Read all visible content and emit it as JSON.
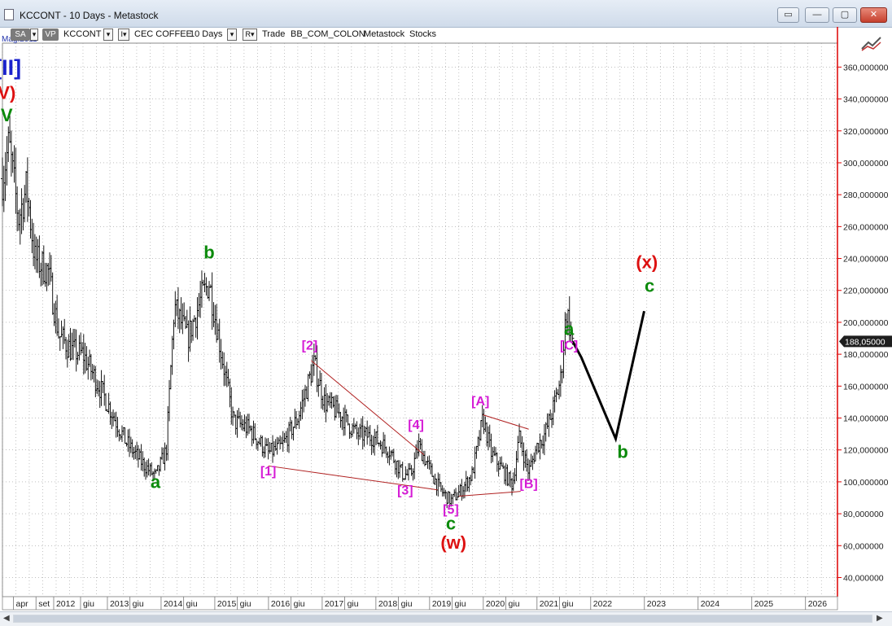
{
  "window": {
    "title": "KCCONT - 10 Days - Metastock",
    "restore_label": "▭",
    "minimize_label": "—",
    "maximize_label": "▢",
    "close_label": "✕",
    "icon": "document-icon"
  },
  "toolbar": {
    "sa_label": "SA",
    "vp_label": "VP",
    "symbol": "KCCONT",
    "name": "CEC COFFEE",
    "period": "10 Days",
    "trade_label": "Trade",
    "source": "BB_COM_COLON",
    "provider": "Metastock",
    "category": "Stocks",
    "partial_date_label": "Mag.2011"
  },
  "colors": {
    "price_axis": "#dd0000",
    "green_label": "#0b8a0b",
    "red_label": "#dd1111",
    "magenta_label": "#d51bd5",
    "blue_label": "#1a22cc",
    "trend_line": "#b02020",
    "projection": "#000000"
  },
  "chart_data": {
    "type": "ohlc",
    "ylim": [
      28,
      375
    ],
    "y_ticks": [
      40,
      60,
      80,
      100,
      120,
      140,
      160,
      180,
      200,
      220,
      240,
      260,
      280,
      300,
      320,
      340,
      360
    ],
    "y_tick_labels": [
      "40,000000",
      "60,000000",
      "80,000000",
      "100,000000",
      "120,000000",
      "140,000000",
      "160,000000",
      "180,000000",
      "200,000000",
      "220,000000",
      "240,000000",
      "260,000000",
      "280,000000",
      "300,000000",
      "320,000000",
      "340,000000",
      "360,000000"
    ],
    "last_price_label": "188,05000",
    "last_price": 188.05,
    "time_labels": [
      {
        "t": 2011.25,
        "label": "apr"
      },
      {
        "t": 2011.67,
        "label": "set"
      },
      {
        "t": 2012.0,
        "label": "2012"
      },
      {
        "t": 2012.5,
        "label": "giu"
      },
      {
        "t": 2013.0,
        "label": "2013"
      },
      {
        "t": 2013.42,
        "label": "giu"
      },
      {
        "t": 2014.0,
        "label": "2014"
      },
      {
        "t": 2014.42,
        "label": "giu"
      },
      {
        "t": 2015.0,
        "label": "2015"
      },
      {
        "t": 2015.42,
        "label": "giu"
      },
      {
        "t": 2016.0,
        "label": "2016"
      },
      {
        "t": 2016.42,
        "label": "giu"
      },
      {
        "t": 2017.0,
        "label": "2017"
      },
      {
        "t": 2017.42,
        "label": "giu"
      },
      {
        "t": 2018.0,
        "label": "2018"
      },
      {
        "t": 2018.42,
        "label": "giu"
      },
      {
        "t": 2019.0,
        "label": "2019"
      },
      {
        "t": 2019.42,
        "label": "giu"
      },
      {
        "t": 2020.0,
        "label": "2020"
      },
      {
        "t": 2020.42,
        "label": "giu"
      },
      {
        "t": 2021.0,
        "label": "2021"
      },
      {
        "t": 2021.42,
        "label": "giu"
      },
      {
        "t": 2022.0,
        "label": "2022"
      },
      {
        "t": 2023.0,
        "label": "2023"
      },
      {
        "t": 2024.0,
        "label": "2024"
      },
      {
        "t": 2025.0,
        "label": "2025"
      },
      {
        "t": 2026.0,
        "label": "2026"
      }
    ],
    "price_path": [
      [
        2011.0,
        290
      ],
      [
        2011.12,
        312
      ],
      [
        2011.3,
        265
      ],
      [
        2011.45,
        285
      ],
      [
        2011.6,
        240
      ],
      [
        2011.85,
        232
      ],
      [
        2012.05,
        192
      ],
      [
        2012.3,
        182
      ],
      [
        2012.5,
        180
      ],
      [
        2012.8,
        160
      ],
      [
        2013.0,
        146
      ],
      [
        2013.3,
        125
      ],
      [
        2013.6,
        112
      ],
      [
        2013.85,
        103
      ],
      [
        2014.05,
        120
      ],
      [
        2014.2,
        210
      ],
      [
        2014.45,
        190
      ],
      [
        2014.7,
        215
      ],
      [
        2014.85,
        225
      ],
      [
        2015.1,
        176
      ],
      [
        2015.3,
        138
      ],
      [
        2015.6,
        133
      ],
      [
        2015.95,
        118
      ],
      [
        2016.2,
        122
      ],
      [
        2016.5,
        140
      ],
      [
        2016.8,
        174
      ],
      [
        2017.0,
        150
      ],
      [
        2017.3,
        142
      ],
      [
        2017.6,
        130
      ],
      [
        2017.9,
        128
      ],
      [
        2018.2,
        120
      ],
      [
        2018.45,
        105
      ],
      [
        2018.6,
        104
      ],
      [
        2018.75,
        123
      ],
      [
        2018.95,
        108
      ],
      [
        2019.15,
        95
      ],
      [
        2019.35,
        88
      ],
      [
        2019.55,
        95
      ],
      [
        2019.75,
        105
      ],
      [
        2019.95,
        140
      ],
      [
        2020.1,
        118
      ],
      [
        2020.3,
        108
      ],
      [
        2020.5,
        98
      ],
      [
        2020.62,
        128
      ],
      [
        2020.8,
        106
      ],
      [
        2020.95,
        122
      ],
      [
        2021.1,
        130
      ],
      [
        2021.25,
        145
      ],
      [
        2021.4,
        165
      ],
      [
        2021.5,
        208
      ],
      [
        2021.58,
        195
      ],
      [
        2021.62,
        188.05
      ]
    ],
    "projection_path": [
      [
        2021.62,
        188.05
      ],
      [
        2021.78,
        178
      ],
      [
        2022.42,
        127
      ],
      [
        2022.95,
        207
      ]
    ],
    "trend_lines": [
      {
        "from": [
          2016.75,
          176
        ],
        "to": [
          2018.85,
          117
        ]
      },
      {
        "from": [
          2015.95,
          110
        ],
        "to": [
          2019.1,
          95
        ]
      },
      {
        "from": [
          2019.95,
          142
        ],
        "to": [
          2020.8,
          133
        ]
      },
      {
        "from": [
          2019.5,
          91
        ],
        "to": [
          2020.65,
          94
        ]
      }
    ],
    "wave_labels": [
      {
        "text": "[II]",
        "t": 2011.1,
        "y": 355,
        "color": "blue"
      },
      {
        "text": "V)",
        "t": 2011.08,
        "y": 340,
        "color": "red"
      },
      {
        "text": "V",
        "t": 2011.08,
        "y": 326,
        "color": "green"
      },
      {
        "text": "b",
        "t": 2014.85,
        "y": 240,
        "color": "green"
      },
      {
        "text": "a",
        "t": 2013.85,
        "y": 96,
        "color": "green"
      },
      {
        "text": "[1]",
        "t": 2015.95,
        "y": 104,
        "color": "magenta"
      },
      {
        "text": "[2]",
        "t": 2016.72,
        "y": 183,
        "color": "magenta"
      },
      {
        "text": "[3]",
        "t": 2018.5,
        "y": 92,
        "color": "magenta"
      },
      {
        "text": "[4]",
        "t": 2018.7,
        "y": 133,
        "color": "magenta"
      },
      {
        "text": "[5]",
        "t": 2019.35,
        "y": 80,
        "color": "magenta"
      },
      {
        "text": "c",
        "t": 2019.35,
        "y": 70,
        "color": "green"
      },
      {
        "text": "(w)",
        "t": 2019.4,
        "y": 58,
        "color": "red"
      },
      {
        "text": "[A]",
        "t": 2019.9,
        "y": 148,
        "color": "magenta"
      },
      {
        "text": "[B]",
        "t": 2020.8,
        "y": 96,
        "color": "magenta"
      },
      {
        "text": "a",
        "t": 2021.55,
        "y": 192,
        "color": "green"
      },
      {
        "text": "[C]",
        "t": 2021.55,
        "y": 183,
        "color": "magenta"
      },
      {
        "text": "b",
        "t": 2022.55,
        "y": 115,
        "color": "green"
      },
      {
        "text": "(x)",
        "t": 2023.0,
        "y": 234,
        "color": "red"
      },
      {
        "text": "c",
        "t": 2023.05,
        "y": 219,
        "color": "green"
      }
    ],
    "grid": true
  },
  "icons": {
    "corner": "chart-tool-icon",
    "scroll_left": "◀",
    "scroll_right": "▶"
  }
}
